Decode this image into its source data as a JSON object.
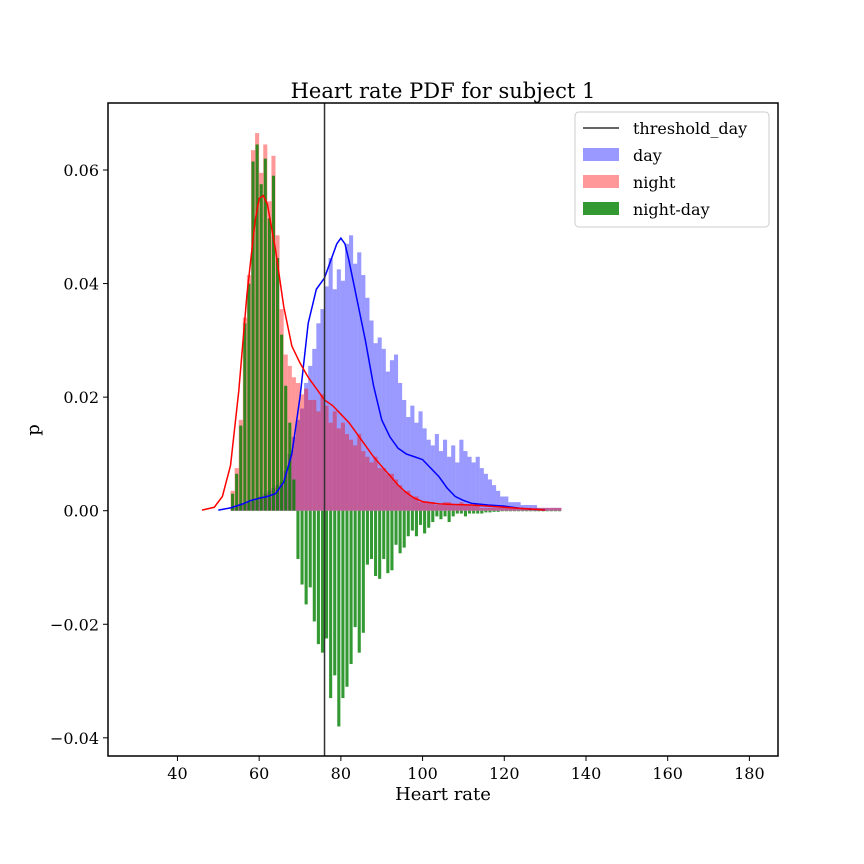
{
  "chart_data": {
    "type": "histogram-kde",
    "title": "Heart rate PDF for subject 1",
    "xlabel": "Heart rate",
    "ylabel": "p",
    "xlim": [
      23,
      187
    ],
    "ylim": [
      -0.0432,
      0.0718
    ],
    "xticks": [
      {
        "value": 40,
        "label": "40"
      },
      {
        "value": 60,
        "label": "60"
      },
      {
        "value": 80,
        "label": "80"
      },
      {
        "value": 100,
        "label": "100"
      },
      {
        "value": 120,
        "label": "120"
      },
      {
        "value": 140,
        "label": "140"
      },
      {
        "value": 160,
        "label": "160"
      },
      {
        "value": 180,
        "label": "180"
      }
    ],
    "yticks": [
      {
        "value": -0.04,
        "label": "−0.04"
      },
      {
        "value": -0.02,
        "label": "−0.02"
      },
      {
        "value": 0.0,
        "label": "0.00"
      },
      {
        "value": 0.02,
        "label": "0.02"
      },
      {
        "value": 0.04,
        "label": "0.04"
      },
      {
        "value": 0.06,
        "label": "0.06"
      }
    ],
    "grid": false,
    "legend_position": "top-right",
    "threshold": {
      "name": "threshold_day",
      "x": 76,
      "color": "#333333"
    },
    "bin_width": 1,
    "bins_start": 53,
    "series": [
      {
        "name": "day",
        "color": "#0000ff",
        "alpha": 0.4,
        "values": [
          0.0005,
          0.0008,
          0.001,
          0.0012,
          0.0015,
          0.0018,
          0.002,
          0.0025,
          0.003,
          0.0035,
          0.004,
          0.0045,
          0.005,
          0.007,
          0.01,
          0.013,
          0.016,
          0.018,
          0.0225,
          0.0255,
          0.0285,
          0.033,
          0.0355,
          0.0395,
          0.0445,
          0.039,
          0.0425,
          0.0405,
          0.047,
          0.0485,
          0.0435,
          0.0455,
          0.0415,
          0.0375,
          0.0335,
          0.0295,
          0.0305,
          0.0285,
          0.0245,
          0.0265,
          0.0275,
          0.0225,
          0.0195,
          0.0165,
          0.0185,
          0.0155,
          0.0175,
          0.0145,
          0.0125,
          0.0115,
          0.0135,
          0.0105,
          0.0125,
          0.0095,
          0.0115,
          0.0085,
          0.0125,
          0.0105,
          0.0095,
          0.0085,
          0.0095,
          0.0075,
          0.0065,
          0.0055,
          0.0045,
          0.0035,
          0.0025,
          0.0025,
          0.0015,
          0.0015,
          0.0015,
          0.001,
          0.001,
          0.001,
          0.001,
          0.0005,
          0.0005,
          0.0005,
          0.0005,
          0.0005,
          0.0005
        ],
        "kde_points": [
          [
            50,
            0.0001
          ],
          [
            53,
            0.0005
          ],
          [
            56,
            0.0012
          ],
          [
            58,
            0.0018
          ],
          [
            60,
            0.0022
          ],
          [
            62,
            0.0025
          ],
          [
            64,
            0.003
          ],
          [
            66,
            0.005
          ],
          [
            68,
            0.01
          ],
          [
            70,
            0.02
          ],
          [
            72,
            0.033
          ],
          [
            74,
            0.039
          ],
          [
            76,
            0.041
          ],
          [
            78,
            0.045
          ],
          [
            79,
            0.047
          ],
          [
            80,
            0.048
          ],
          [
            81,
            0.047
          ],
          [
            82,
            0.044
          ],
          [
            84,
            0.037
          ],
          [
            86,
            0.03
          ],
          [
            88,
            0.022
          ],
          [
            90,
            0.016
          ],
          [
            92,
            0.013
          ],
          [
            94,
            0.011
          ],
          [
            96,
            0.01
          ],
          [
            98,
            0.0095
          ],
          [
            100,
            0.009
          ],
          [
            102,
            0.0075
          ],
          [
            104,
            0.006
          ],
          [
            106,
            0.004
          ],
          [
            108,
            0.0025
          ],
          [
            110,
            0.0018
          ],
          [
            112,
            0.0013
          ],
          [
            116,
            0.001
          ],
          [
            120,
            0.0008
          ],
          [
            124,
            0.0004
          ],
          [
            128,
            0.0002
          ],
          [
            130,
            0.0001
          ]
        ]
      },
      {
        "name": "night",
        "color": "#ff0000",
        "alpha": 0.4,
        "values": [
          0.0035,
          0.0075,
          0.016,
          0.034,
          0.0415,
          0.0635,
          0.0665,
          0.0595,
          0.0645,
          0.0545,
          0.0625,
          0.0485,
          0.0355,
          0.0275,
          0.0255,
          0.0235,
          0.0225,
          0.0205,
          0.0215,
          0.0195,
          0.0195,
          0.0175,
          0.0205,
          0.0185,
          0.0155,
          0.0175,
          0.0145,
          0.0155,
          0.0135,
          0.0125,
          0.0115,
          0.0135,
          0.0105,
          0.0095,
          0.0085,
          0.0095,
          0.0075,
          0.0075,
          0.0065,
          0.0065,
          0.0055,
          0.0045,
          0.0035,
          0.0035,
          0.0025,
          0.0025,
          0.0015,
          0.0015,
          0.0015,
          0.0015,
          0.001,
          0.001,
          0.0015,
          0.0015,
          0.001,
          0.001,
          0.0015,
          0.001,
          0.001,
          0.001,
          0.001,
          0.0005,
          0.0005,
          0.0005,
          0.0005,
          0.0005,
          0.0005,
          0.0005,
          0.0005,
          0.0005,
          0.0005,
          0.0005,
          0.0005,
          0.0005,
          0.0005,
          0.0005,
          0.0005,
          0.0005,
          0.0005,
          0.0005,
          0.0005
        ],
        "kde_points": [
          [
            46,
            0.0001
          ],
          [
            49,
            0.0006
          ],
          [
            51,
            0.0025
          ],
          [
            53,
            0.008
          ],
          [
            55,
            0.021
          ],
          [
            57,
            0.038
          ],
          [
            59,
            0.051
          ],
          [
            60,
            0.055
          ],
          [
            61,
            0.0555
          ],
          [
            62,
            0.054
          ],
          [
            64,
            0.046
          ],
          [
            66,
            0.036
          ],
          [
            68,
            0.029
          ],
          [
            70,
            0.026
          ],
          [
            72,
            0.0235
          ],
          [
            74,
            0.0215
          ],
          [
            76,
            0.0195
          ],
          [
            78,
            0.0185
          ],
          [
            80,
            0.017
          ],
          [
            82,
            0.0155
          ],
          [
            84,
            0.0135
          ],
          [
            86,
            0.0115
          ],
          [
            88,
            0.0095
          ],
          [
            90,
            0.0078
          ],
          [
            92,
            0.0062
          ],
          [
            94,
            0.0045
          ],
          [
            96,
            0.0032
          ],
          [
            98,
            0.0022
          ],
          [
            100,
            0.0016
          ],
          [
            104,
            0.0012
          ],
          [
            108,
            0.0011
          ],
          [
            112,
            0.001
          ],
          [
            116,
            0.0008
          ],
          [
            120,
            0.0006
          ],
          [
            124,
            0.0004
          ],
          [
            128,
            0.0002
          ],
          [
            130,
            0.0001
          ]
        ]
      },
      {
        "name": "night-day",
        "color": "#008000",
        "alpha": 0.8,
        "values": [
          0.003,
          0.0065,
          0.015,
          0.033,
          0.04,
          0.0615,
          0.0645,
          0.0575,
          0.062,
          0.0515,
          0.059,
          0.0445,
          0.031,
          0.022,
          0.0155,
          0.0055,
          -0.0085,
          -0.013,
          -0.0165,
          -0.0135,
          -0.0195,
          -0.0235,
          -0.025,
          -0.0225,
          -0.033,
          -0.029,
          -0.038,
          -0.033,
          -0.031,
          -0.027,
          -0.0205,
          -0.025,
          -0.0215,
          -0.0095,
          -0.0085,
          -0.0115,
          -0.012,
          -0.0085,
          -0.011,
          -0.0105,
          -0.006,
          -0.0075,
          -0.0065,
          -0.0045,
          -0.0035,
          -0.0045,
          -0.0025,
          -0.004,
          -0.003,
          -0.002,
          -0.001,
          -0.0015,
          -0.001,
          -0.002,
          -0.001,
          -0.0005,
          -0.0005,
          -0.001,
          -0.0005,
          -0.0005,
          -0.0005,
          -0.0005,
          -0.0003,
          -0.0003,
          -0.0002,
          -0.0002,
          -0.0001,
          -0.0001,
          -0.0001,
          -0.0001,
          -0.0001,
          -0.0001,
          -0.0001,
          -0.0001,
          -0.0001,
          -0.0001,
          -0.0001,
          -0.0001,
          -0.0001,
          -0.0001,
          -0.0001
        ]
      }
    ]
  }
}
